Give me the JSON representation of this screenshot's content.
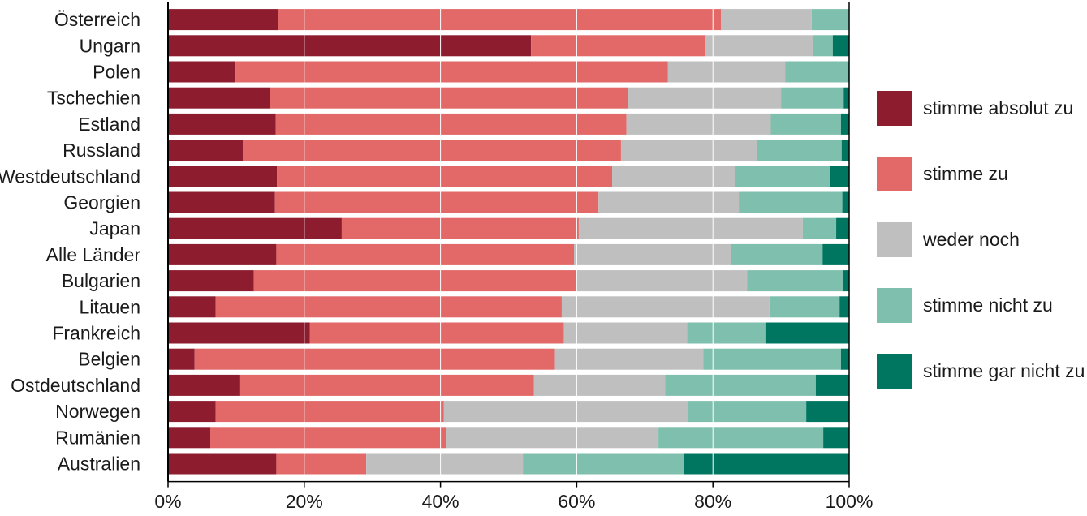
{
  "chart_data": {
    "type": "bar",
    "orientation": "horizontal",
    "stacked": true,
    "percent": true,
    "title": "",
    "xlabel": "",
    "ylabel": "",
    "xlim": [
      0,
      100
    ],
    "grid": true,
    "legend_position": "right",
    "x_ticks": [
      "0%",
      "20%",
      "40%",
      "60%",
      "80%",
      "100%"
    ],
    "categories": [
      "Österreich",
      "Ungarn",
      "Polen",
      "Tschechien",
      "Estland",
      "Russland",
      "Westdeutschland",
      "Georgien",
      "Japan",
      "Alle Länder",
      "Bulgarien",
      "Litauen",
      "Frankreich",
      "Belgien",
      "Ostdeutschland",
      "Norwegen",
      "Rumänien",
      "Australien"
    ],
    "series": [
      {
        "name": "stimme absolut zu",
        "color": "#8c1c2e",
        "values": [
          16.2,
          53.3,
          9.9,
          15.0,
          15.8,
          11.0,
          16.0,
          15.7,
          25.5,
          15.9,
          12.6,
          7.0,
          20.8,
          3.9,
          10.6,
          7.0,
          6.2,
          15.9
        ]
      },
      {
        "name": "stimme zu",
        "color": "#e36868",
        "values": [
          65.0,
          25.5,
          63.5,
          52.5,
          51.5,
          55.5,
          49.2,
          47.5,
          34.8,
          43.7,
          47.4,
          50.8,
          37.3,
          52.9,
          43.1,
          33.5,
          34.6,
          13.2
        ]
      },
      {
        "name": "weder noch",
        "color": "#bfbfbf",
        "values": [
          13.3,
          15.9,
          17.2,
          22.5,
          21.2,
          20.0,
          18.1,
          20.6,
          32.9,
          23.0,
          25.0,
          30.5,
          18.1,
          21.8,
          19.3,
          35.9,
          31.2,
          23.0
        ]
      },
      {
        "name": "stimme nicht zu",
        "color": "#7fbfad",
        "values": [
          5.5,
          2.9,
          9.3,
          9.2,
          10.3,
          12.4,
          13.9,
          15.2,
          4.9,
          13.5,
          14.1,
          10.3,
          11.5,
          20.2,
          22.1,
          17.3,
          24.2,
          23.6
        ]
      },
      {
        "name": "stimme gar nicht zu",
        "color": "#007560",
        "values": [
          0.0,
          2.4,
          0.1,
          0.8,
          1.2,
          1.1,
          2.8,
          1.0,
          1.9,
          3.9,
          0.9,
          1.4,
          12.3,
          1.2,
          4.9,
          6.3,
          3.8,
          24.3
        ]
      }
    ]
  }
}
